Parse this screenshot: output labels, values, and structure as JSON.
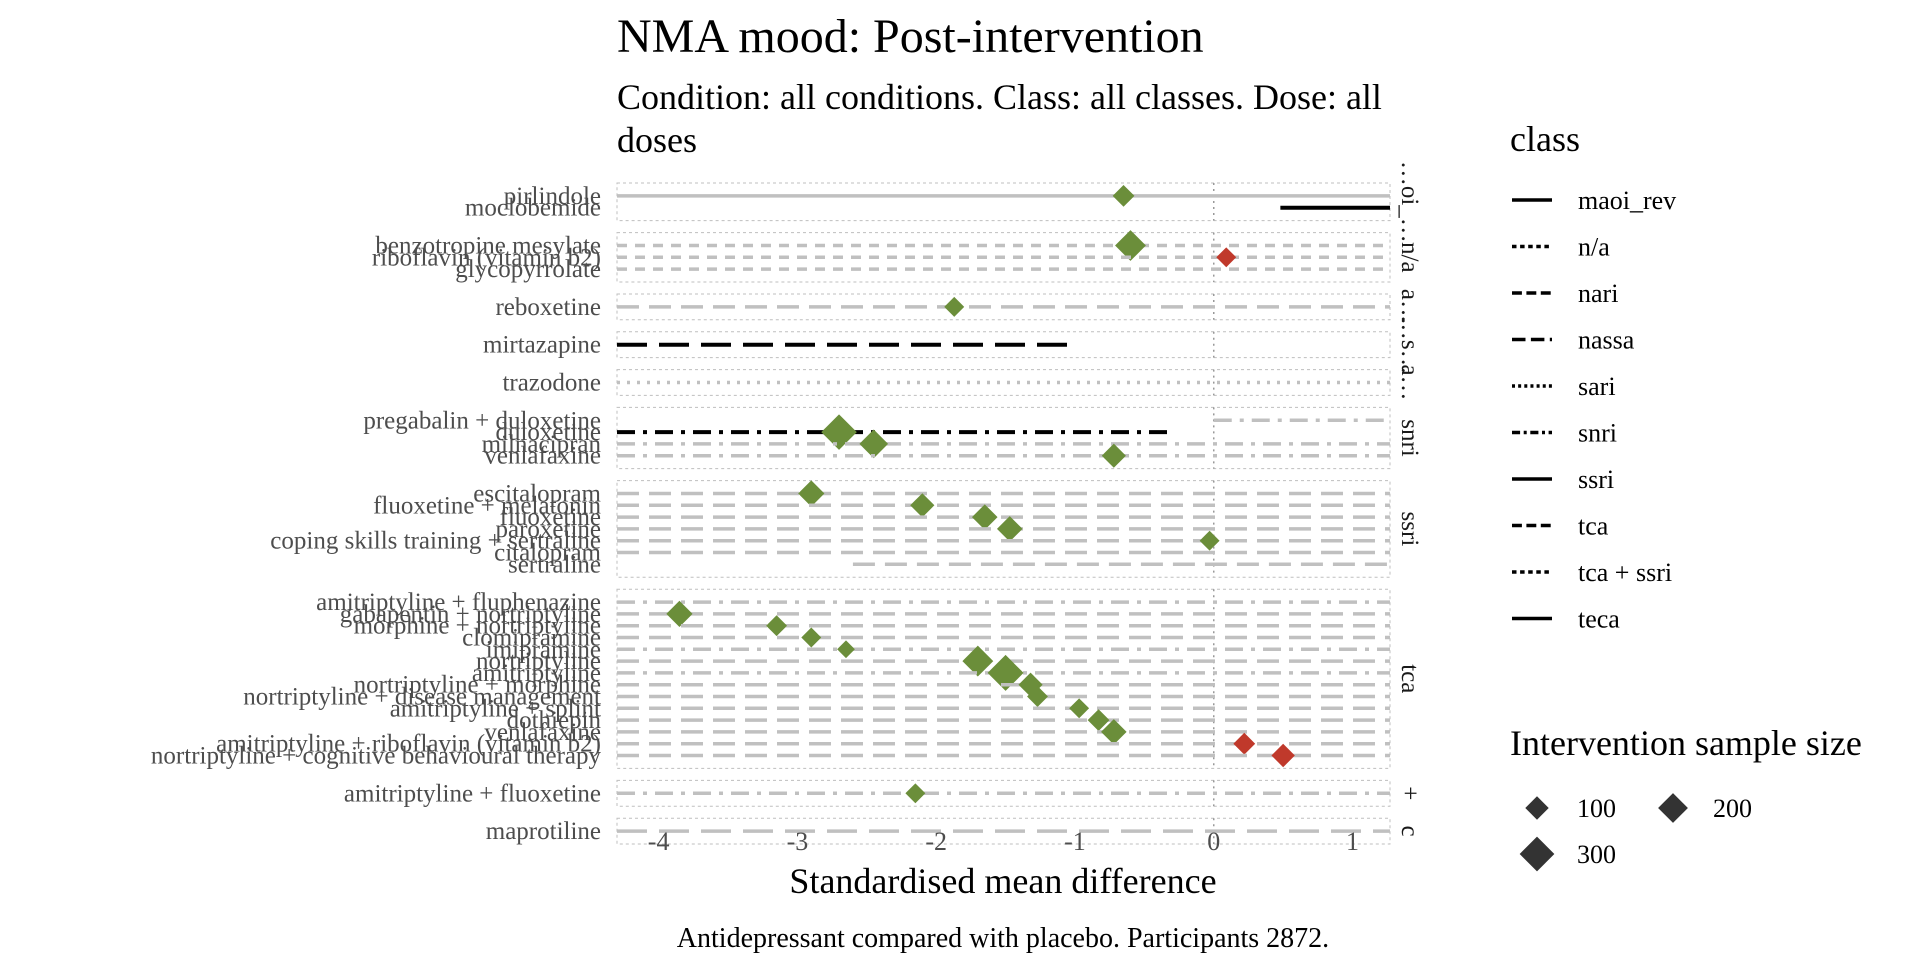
{
  "title": "NMA mood: Post-intervention",
  "subtitle_line1": "Condition: all conditions. Class: all classes. Dose: all",
  "subtitle_line2": "doses",
  "caption": "Antidepressant compared with placebo. Participants 2872.",
  "colors": {
    "favours": "#6b8e3a",
    "against": "#c0392b",
    "grid": "#c0c0c0",
    "ci_highlight": "#000000",
    "panel_border": "#bfbfbf",
    "zero_line": "#999999"
  },
  "chart_data": {
    "type": "forest",
    "xlabel": "Standardised mean difference",
    "xlim": [
      -4.3,
      1.27
    ],
    "xticks": [
      -4,
      -3,
      -2,
      -1,
      0,
      1
    ],
    "legend": {
      "linetype_title": "class",
      "classes": [
        {
          "name": "maoi_rev",
          "dash": "solid"
        },
        {
          "name": "n/a",
          "dash": "dot2"
        },
        {
          "name": "nari",
          "dash": "dash"
        },
        {
          "name": "nassa",
          "dash": "longdash"
        },
        {
          "name": "sari",
          "dash": "dotted"
        },
        {
          "name": "snri",
          "dash": "dotdash"
        },
        {
          "name": "ssri",
          "dash": "solid"
        },
        {
          "name": "tca",
          "dash": "dash"
        },
        {
          "name": "tca + ssri",
          "dash": "dot2"
        },
        {
          "name": "teca",
          "dash": "solid"
        }
      ],
      "size_title": "Intervention sample size",
      "sizes": [
        100,
        200,
        300
      ]
    },
    "panels": [
      {
        "strip": "…oi_…",
        "rows": [
          {
            "label": "pirlindole",
            "smd": -0.65,
            "n": 80,
            "ci": [
              -4.3,
              1.27
            ],
            "dash": "solid",
            "highlight": false
          },
          {
            "label": "moclobemide",
            "smd": null,
            "n": 0,
            "ci": [
              0.48,
              1.27
            ],
            "dash": "solid",
            "highlight": true
          }
        ]
      },
      {
        "strip": "n/a",
        "rows": [
          {
            "label": "benzotropine mesylate",
            "smd": -0.6,
            "n": 220,
            "ci": [
              -4.3,
              1.27
            ],
            "dash": "dot2",
            "highlight": false
          },
          {
            "label": "riboflavin (vitamin b2)",
            "smd": 0.09,
            "n": 60,
            "ci": [
              -4.3,
              1.27
            ],
            "dash": "dot2",
            "highlight": false
          },
          {
            "label": "glycopyrrolate",
            "smd": null,
            "n": 0,
            "ci": [
              -4.3,
              1.27
            ],
            "dash": "dot2",
            "highlight": false
          }
        ]
      },
      {
        "strip": "a…",
        "rows": [
          {
            "label": "reboxetine",
            "smd": -1.87,
            "n": 60,
            "ci": [
              -4.3,
              1.27
            ],
            "dash": "dash",
            "highlight": false
          }
        ]
      },
      {
        "strip": "…s…",
        "rows": [
          {
            "label": "mirtazapine",
            "smd": null,
            "n": 0,
            "ci": [
              -4.3,
              -1.05
            ],
            "dash": "longdash",
            "highlight": true
          }
        ]
      },
      {
        "strip": "a…",
        "rows": [
          {
            "label": "trazodone",
            "smd": null,
            "n": 0,
            "ci": [
              -4.3,
              1.27
            ],
            "dash": "dotted",
            "highlight": false
          }
        ]
      },
      {
        "strip": "snri",
        "rows": [
          {
            "label": "pregabalin + duloxetine",
            "smd": null,
            "n": 0,
            "ci": [
              0.0,
              1.27
            ],
            "dash": "dotdash",
            "highlight": false
          },
          {
            "label": "duloxetine",
            "smd": -2.7,
            "n": 320,
            "ci": [
              -4.3,
              -0.3
            ],
            "dash": "dotdash",
            "highlight": true
          },
          {
            "label": "milnacipran",
            "smd": -2.45,
            "n": 180,
            "ci": [
              -4.3,
              1.27
            ],
            "dash": "dotdash",
            "highlight": false
          },
          {
            "label": "venlafaxine",
            "smd": -0.72,
            "n": 110,
            "ci": [
              -4.3,
              1.27
            ],
            "dash": "dotdash",
            "highlight": false
          }
        ]
      },
      {
        "strip": "ssri",
        "rows": [
          {
            "label": "escitalopram",
            "smd": -2.9,
            "n": 140,
            "ci": [
              -4.3,
              1.27
            ],
            "dash": "dash",
            "highlight": false
          },
          {
            "label": "fluoxetine + melatonin",
            "smd": -2.1,
            "n": 110,
            "ci": [
              -4.3,
              1.27
            ],
            "dash": "dash",
            "highlight": false
          },
          {
            "label": "fluoxetine",
            "smd": -1.65,
            "n": 130,
            "ci": [
              -4.3,
              1.27
            ],
            "dash": "dash",
            "highlight": false
          },
          {
            "label": "paroxetine",
            "smd": -1.47,
            "n": 130,
            "ci": [
              -4.3,
              1.27
            ],
            "dash": "dash",
            "highlight": false
          },
          {
            "label": "coping skills training + sertraline",
            "smd": -0.03,
            "n": 60,
            "ci": [
              -4.3,
              1.27
            ],
            "dash": "dash",
            "highlight": false
          },
          {
            "label": "citalopram",
            "smd": null,
            "n": 0,
            "ci": [
              -4.3,
              1.27
            ],
            "dash": "dash",
            "highlight": false
          },
          {
            "label": "sertraline",
            "smd": null,
            "n": 0,
            "ci": [
              -2.6,
              1.27
            ],
            "dash": "dash",
            "highlight": false
          }
        ]
      },
      {
        "strip": "tca",
        "rows": [
          {
            "label": "amitriptyline + fluphenazine",
            "smd": null,
            "n": 0,
            "ci": [
              -4.3,
              1.27
            ],
            "dash": "dotdash",
            "highlight": false
          },
          {
            "label": "gabapentin + nortriptyline",
            "smd": -3.85,
            "n": 140,
            "ci": [
              -4.3,
              1.27
            ],
            "dash": "dash",
            "highlight": false
          },
          {
            "label": "morphine + nortriptyline",
            "smd": -3.15,
            "n": 70,
            "ci": [
              -4.3,
              1.27
            ],
            "dash": "dash",
            "highlight": false
          },
          {
            "label": "clomipramine",
            "smd": -2.9,
            "n": 60,
            "ci": [
              -4.3,
              1.27
            ],
            "dash": "dash",
            "highlight": false
          },
          {
            "label": "imipramine",
            "smd": -2.65,
            "n": 40,
            "ci": [
              -4.3,
              1.27
            ],
            "dash": "dotdash",
            "highlight": false
          },
          {
            "label": "nortriptyline",
            "smd": -1.7,
            "n": 220,
            "ci": [
              -4.3,
              1.27
            ],
            "dash": "dash",
            "highlight": false
          },
          {
            "label": "amitriptyline",
            "smd": -1.5,
            "n": 330,
            "ci": [
              -4.3,
              1.27
            ],
            "dash": "dotdash",
            "highlight": false
          },
          {
            "label": "nortriptyline + morphine",
            "smd": -1.32,
            "n": 110,
            "ci": [
              -4.3,
              1.27
            ],
            "dash": "dash",
            "highlight": false
          },
          {
            "label": "nortriptyline + disease management",
            "smd": -1.27,
            "n": 70,
            "ci": [
              -4.3,
              1.27
            ],
            "dash": "dash",
            "highlight": false
          },
          {
            "label": "amitriptyline + splint",
            "smd": -0.97,
            "n": 60,
            "ci": [
              -4.3,
              1.27
            ],
            "dash": "dash",
            "highlight": false
          },
          {
            "label": "dothiepin",
            "smd": -0.83,
            "n": 80,
            "ci": [
              -4.3,
              1.27
            ],
            "dash": "dash",
            "highlight": false
          },
          {
            "label": "venlafaxine",
            "smd": -0.72,
            "n": 130,
            "ci": [
              -4.3,
              1.27
            ],
            "dash": "dash",
            "highlight": false
          },
          {
            "label": "amitriptyline + riboflavin (vitamin b2)",
            "smd": 0.22,
            "n": 80,
            "ci": [
              -4.3,
              1.27
            ],
            "dash": "dash",
            "highlight": false
          },
          {
            "label": "nortriptyline + cognitive behavioural therapy",
            "smd": 0.5,
            "n": 100,
            "ci": [
              -4.3,
              1.27
            ],
            "dash": "dash",
            "highlight": false
          }
        ]
      },
      {
        "strip": "+",
        "rows": [
          {
            "label": "amitriptyline + fluoxetine",
            "smd": -2.15,
            "n": 60,
            "ci": [
              -4.3,
              1.27
            ],
            "dash": "dotdash",
            "highlight": false
          }
        ]
      },
      {
        "strip": "c",
        "rows": [
          {
            "label": "maprotiline",
            "smd": null,
            "n": 0,
            "ci": [
              -4.3,
              1.27
            ],
            "dash": "longdash",
            "highlight": false
          }
        ]
      }
    ]
  }
}
